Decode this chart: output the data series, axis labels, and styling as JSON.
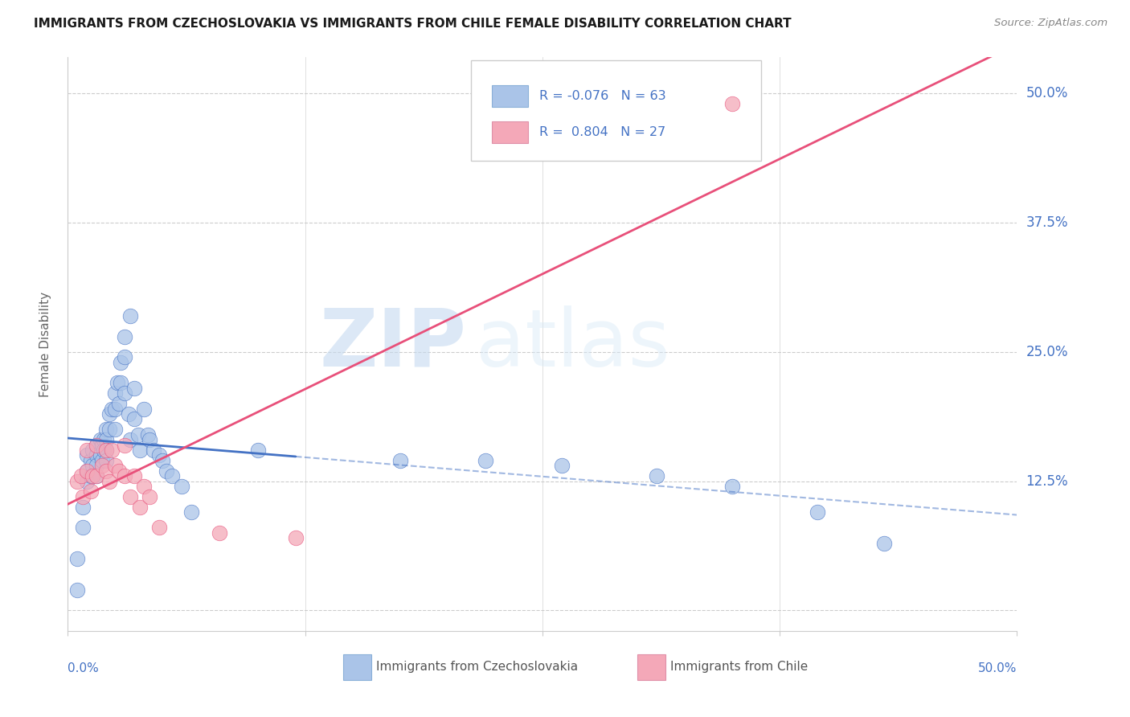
{
  "title": "IMMIGRANTS FROM CZECHOSLOVAKIA VS IMMIGRANTS FROM CHILE FEMALE DISABILITY CORRELATION CHART",
  "source": "Source: ZipAtlas.com",
  "ylabel": "Female Disability",
  "xlim": [
    0.0,
    0.5
  ],
  "ylim": [
    -0.02,
    0.535
  ],
  "yticks": [
    0.0,
    0.125,
    0.25,
    0.375,
    0.5
  ],
  "ytick_labels": [
    "",
    "12.5%",
    "25.0%",
    "37.5%",
    "50.0%"
  ],
  "color_czech": "#aac4e8",
  "color_chile": "#f4a8b8",
  "line_czech": "#4472c4",
  "line_chile": "#e8507a",
  "watermark_zip": "ZIP",
  "watermark_atlas": "atlas",
  "background": "#ffffff",
  "czech_x": [
    0.005,
    0.005,
    0.008,
    0.008,
    0.01,
    0.01,
    0.01,
    0.012,
    0.012,
    0.013,
    0.013,
    0.015,
    0.015,
    0.015,
    0.015,
    0.017,
    0.017,
    0.018,
    0.018,
    0.019,
    0.019,
    0.02,
    0.02,
    0.02,
    0.02,
    0.022,
    0.022,
    0.023,
    0.025,
    0.025,
    0.025,
    0.026,
    0.027,
    0.028,
    0.028,
    0.03,
    0.03,
    0.03,
    0.032,
    0.033,
    0.033,
    0.035,
    0.035,
    0.037,
    0.038,
    0.04,
    0.042,
    0.043,
    0.045,
    0.048,
    0.05,
    0.052,
    0.055,
    0.06,
    0.065,
    0.1,
    0.175,
    0.22,
    0.26,
    0.31,
    0.35,
    0.395,
    0.43
  ],
  "czech_y": [
    0.05,
    0.02,
    0.1,
    0.08,
    0.15,
    0.135,
    0.125,
    0.145,
    0.13,
    0.155,
    0.14,
    0.16,
    0.15,
    0.14,
    0.13,
    0.165,
    0.15,
    0.16,
    0.145,
    0.165,
    0.155,
    0.175,
    0.165,
    0.155,
    0.145,
    0.19,
    0.175,
    0.195,
    0.21,
    0.195,
    0.175,
    0.22,
    0.2,
    0.24,
    0.22,
    0.265,
    0.245,
    0.21,
    0.19,
    0.285,
    0.165,
    0.215,
    0.185,
    0.17,
    0.155,
    0.195,
    0.17,
    0.165,
    0.155,
    0.15,
    0.145,
    0.135,
    0.13,
    0.12,
    0.095,
    0.155,
    0.145,
    0.145,
    0.14,
    0.13,
    0.12,
    0.095,
    0.065
  ],
  "chile_x": [
    0.005,
    0.007,
    0.008,
    0.01,
    0.01,
    0.012,
    0.013,
    0.015,
    0.015,
    0.018,
    0.02,
    0.02,
    0.022,
    0.023,
    0.025,
    0.027,
    0.03,
    0.03,
    0.033,
    0.035,
    0.038,
    0.04,
    0.043,
    0.048,
    0.08,
    0.12,
    0.35
  ],
  "chile_y": [
    0.125,
    0.13,
    0.11,
    0.155,
    0.135,
    0.115,
    0.13,
    0.16,
    0.13,
    0.14,
    0.155,
    0.135,
    0.125,
    0.155,
    0.14,
    0.135,
    0.16,
    0.13,
    0.11,
    0.13,
    0.1,
    0.12,
    0.11,
    0.08,
    0.075,
    0.07,
    0.49
  ]
}
